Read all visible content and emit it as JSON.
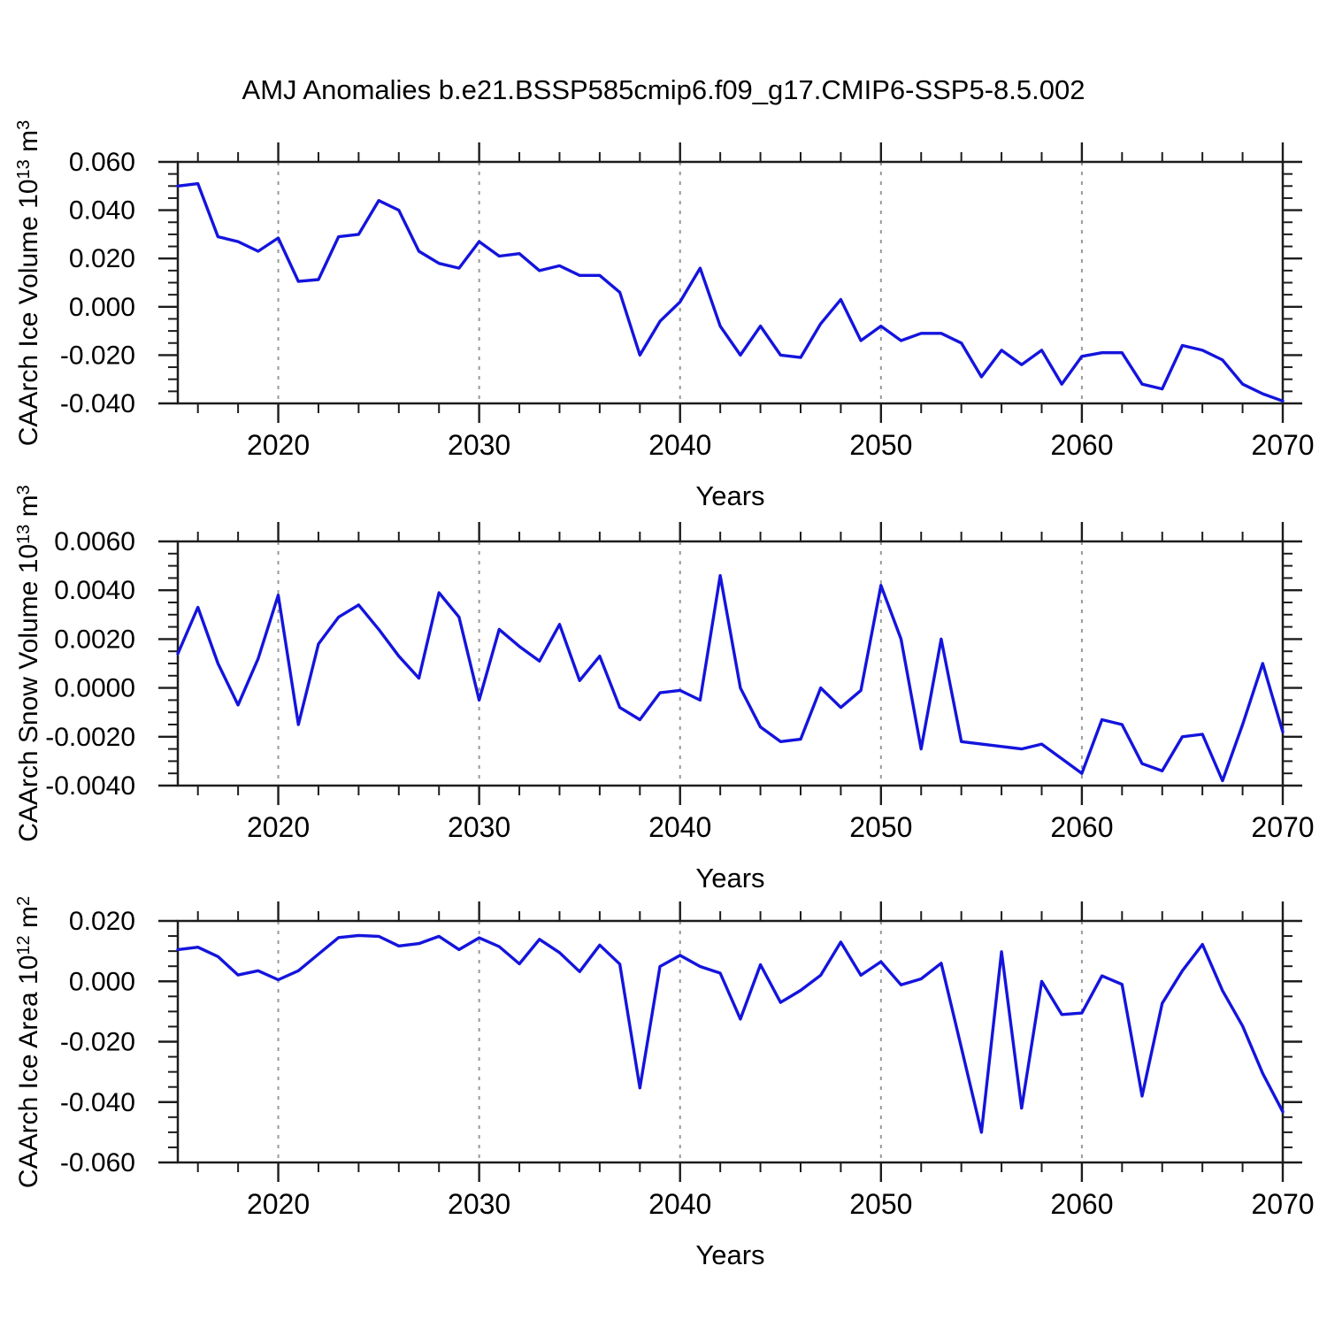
{
  "title": "AMJ Anomalies b.e21.BSSP585cmip6.f09_g17.CMIP6-SSP5-8.5.002",
  "line_color": "#1414dd",
  "grid_color": "#999999",
  "frame_color": "#1c1c1c",
  "x_axis": {
    "label": "Years",
    "start": 2015,
    "end": 2070,
    "minor_step": 2,
    "major_ticks": [
      2020,
      2030,
      2040,
      2050,
      2060,
      2070
    ],
    "tick_labels": [
      "2020",
      "2030",
      "2040",
      "2050",
      "2060",
      "2070"
    ],
    "grid_years": [
      2020,
      2030,
      2040,
      2050,
      2060
    ]
  },
  "chart_data": [
    {
      "type": "line",
      "panel": "ice-volume",
      "series_name": "CAArch Ice Volume",
      "ylabel_text": "CAArch Ice Volume 10^13 m^3",
      "ylabel_parts": [
        [
          "t",
          "CAArch Ice Volume 10"
        ],
        [
          "s",
          "13"
        ],
        [
          "t",
          " m"
        ],
        [
          "s",
          "3"
        ]
      ],
      "xlabel": "Years",
      "ylim": [
        -0.04,
        0.06
      ],
      "ytick_step": 0.02,
      "yminor_step": 0.005,
      "ytick_labels": [
        "0.060",
        "0.040",
        "0.020",
        "0.000",
        "-0.020",
        "-0.040"
      ],
      "x_years": {
        "start": 2015,
        "end": 2070,
        "step": 1
      },
      "grid": "vertical-dashed",
      "legend": "none",
      "values": [
        0.05,
        0.051,
        0.029,
        0.027,
        0.023,
        0.0285,
        0.0105,
        0.0113,
        0.029,
        0.03,
        0.044,
        0.04,
        0.023,
        0.018,
        0.016,
        0.027,
        0.021,
        0.022,
        0.015,
        0.017,
        0.013,
        0.013,
        0.006,
        -0.02,
        -0.006,
        0.002,
        0.016,
        -0.008,
        -0.02,
        -0.008,
        -0.02,
        -0.021,
        -0.007,
        0.003,
        -0.014,
        -0.008,
        -0.014,
        -0.011,
        -0.011,
        -0.015,
        -0.029,
        -0.018,
        -0.024,
        -0.018,
        -0.032,
        -0.0205,
        -0.019,
        -0.019,
        -0.032,
        -0.034,
        -0.016,
        -0.018,
        -0.022,
        -0.032,
        -0.036,
        -0.039
      ]
    },
    {
      "type": "line",
      "panel": "snow-volume",
      "series_name": "CAArch Snow Volume",
      "ylabel_text": "CAArch Snow Volume 10^13 m^3",
      "ylabel_parts": [
        [
          "t",
          "CAArch Snow Volume 10"
        ],
        [
          "s",
          "13"
        ],
        [
          "t",
          " m"
        ],
        [
          "s",
          "3"
        ]
      ],
      "xlabel": "Years",
      "ylim": [
        -0.004,
        0.006
      ],
      "ytick_step": 0.002,
      "yminor_step": 0.0005,
      "ytick_labels": [
        "0.0060",
        "0.0040",
        "0.0020",
        "0.0000",
        "-0.0020",
        "-0.0040"
      ],
      "x_years": {
        "start": 2015,
        "end": 2070,
        "step": 1
      },
      "grid": "vertical-dashed",
      "legend": "none",
      "values": [
        0.0014,
        0.0033,
        0.001,
        -0.0007,
        0.0012,
        0.0038,
        -0.0015,
        0.0018,
        0.0029,
        0.0034,
        0.0024,
        0.0013,
        0.0004,
        0.0039,
        0.0029,
        -0.0005,
        0.0024,
        0.0017,
        0.0011,
        0.0026,
        0.0003,
        0.0013,
        -0.0008,
        -0.0013,
        -0.0002,
        -0.0001,
        -0.0005,
        0.0046,
        0.0,
        -0.0016,
        -0.0022,
        -0.0021,
        0.0,
        -0.0008,
        -0.0001,
        0.0042,
        0.002,
        -0.0025,
        0.002,
        -0.0022,
        -0.0023,
        -0.0024,
        -0.0025,
        -0.0023,
        -0.0029,
        -0.0035,
        -0.0013,
        -0.0015,
        -0.0031,
        -0.0034,
        -0.002,
        -0.0019,
        -0.0038,
        -0.0015,
        0.001,
        -0.0018
      ]
    },
    {
      "type": "line",
      "panel": "ice-area",
      "series_name": "CAArch Ice Area",
      "ylabel_text": "CAArch Ice Area 10^12 m^2",
      "ylabel_parts": [
        [
          "t",
          "CAArch Ice Area 10"
        ],
        [
          "s",
          "12"
        ],
        [
          "t",
          " m"
        ],
        [
          "s",
          "2"
        ]
      ],
      "xlabel": "Years",
      "ylim": [
        -0.06,
        0.02
      ],
      "ytick_step": 0.02,
      "yminor_step": 0.005,
      "ytick_labels": [
        "0.020",
        "0.000",
        "-0.020",
        "-0.040",
        "-0.060"
      ],
      "x_years": {
        "start": 2015,
        "end": 2070,
        "step": 1
      },
      "grid": "vertical-dashed",
      "legend": "none",
      "values": [
        0.0105,
        0.0113,
        0.0082,
        0.0021,
        0.0035,
        0.0005,
        0.0035,
        0.009,
        0.0145,
        0.0152,
        0.0149,
        0.0117,
        0.0125,
        0.0149,
        0.0105,
        0.0144,
        0.0115,
        0.0058,
        0.0139,
        0.0095,
        0.0032,
        0.012,
        0.0057,
        -0.0353,
        0.0049,
        0.0086,
        0.0049,
        0.0027,
        -0.0125,
        0.0055,
        -0.007,
        -0.003,
        0.002,
        0.013,
        0.002,
        0.0065,
        -0.0012,
        0.0008,
        0.006,
        -0.022,
        -0.05,
        0.0098,
        -0.042,
        0.0,
        -0.011,
        -0.0105,
        0.0018,
        -0.001,
        -0.038,
        -0.0073,
        0.0035,
        0.0122,
        -0.0031,
        -0.0148,
        -0.0305,
        -0.0432
      ]
    }
  ]
}
